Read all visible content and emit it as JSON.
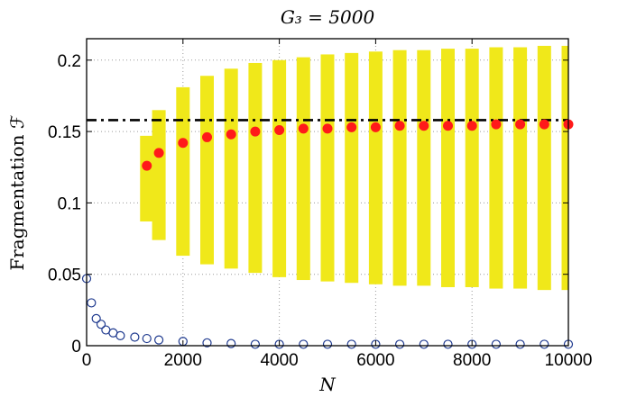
{
  "chart_data": {
    "type": "scatter",
    "title": "G₃ = 5000",
    "xlabel": "N",
    "ylabel": "Fragmentation ℱ",
    "xlim": [
      0,
      10000
    ],
    "ylim": [
      0,
      0.215
    ],
    "xticks": [
      0,
      2000,
      4000,
      6000,
      8000,
      10000
    ],
    "xtick_labels": [
      "0",
      "2000",
      "4000",
      "6000",
      "8000",
      "10000"
    ],
    "yticks": [
      0,
      0.05,
      0.1,
      0.15,
      0.2
    ],
    "ytick_labels": [
      "0",
      "0.05",
      "0.1",
      "0.15",
      "0.2"
    ],
    "grid": true,
    "reference_line": {
      "y": 0.158,
      "style": "dash-dot",
      "color": "#000000"
    },
    "series": [
      {
        "kind": "range-bar",
        "color": "#f0e81a",
        "x": [
          1250,
          1500,
          2000,
          2500,
          3000,
          3500,
          4000,
          4500,
          5000,
          5500,
          6000,
          6500,
          7000,
          7500,
          8000,
          8500,
          9000,
          9500,
          10000
        ],
        "low": [
          0.087,
          0.074,
          0.063,
          0.057,
          0.054,
          0.051,
          0.048,
          0.046,
          0.045,
          0.044,
          0.043,
          0.042,
          0.042,
          0.041,
          0.041,
          0.04,
          0.04,
          0.039,
          0.039
        ],
        "high": [
          0.147,
          0.165,
          0.181,
          0.189,
          0.194,
          0.198,
          0.2,
          0.202,
          0.204,
          0.205,
          0.206,
          0.207,
          0.207,
          0.208,
          0.208,
          0.209,
          0.209,
          0.21,
          0.21
        ]
      },
      {
        "kind": "filled-circle",
        "color": "#ff1a1a",
        "x": [
          1250,
          1500,
          2000,
          2500,
          3000,
          3500,
          4000,
          4500,
          5000,
          5500,
          6000,
          6500,
          7000,
          7500,
          8000,
          8500,
          9000,
          9500,
          10000
        ],
        "y": [
          0.126,
          0.135,
          0.142,
          0.146,
          0.148,
          0.15,
          0.151,
          0.152,
          0.152,
          0.153,
          0.153,
          0.154,
          0.154,
          0.154,
          0.154,
          0.155,
          0.155,
          0.155,
          0.155
        ]
      },
      {
        "kind": "open-circle",
        "color": "#1f3a8f",
        "x": [
          0,
          100,
          200,
          300,
          400,
          550,
          700,
          1000,
          1250,
          1500,
          2000,
          2500,
          3000,
          3500,
          4000,
          4500,
          5000,
          5500,
          6000,
          6500,
          7000,
          7500,
          8000,
          8500,
          9000,
          9500,
          10000
        ],
        "y": [
          0.047,
          0.03,
          0.019,
          0.015,
          0.011,
          0.009,
          0.007,
          0.006,
          0.005,
          0.004,
          0.003,
          0.002,
          0.0015,
          0.001,
          0.001,
          0.001,
          0.001,
          0.001,
          0.001,
          0.001,
          0.001,
          0.001,
          0.001,
          0.001,
          0.001,
          0.001,
          0.001
        ]
      }
    ]
  }
}
